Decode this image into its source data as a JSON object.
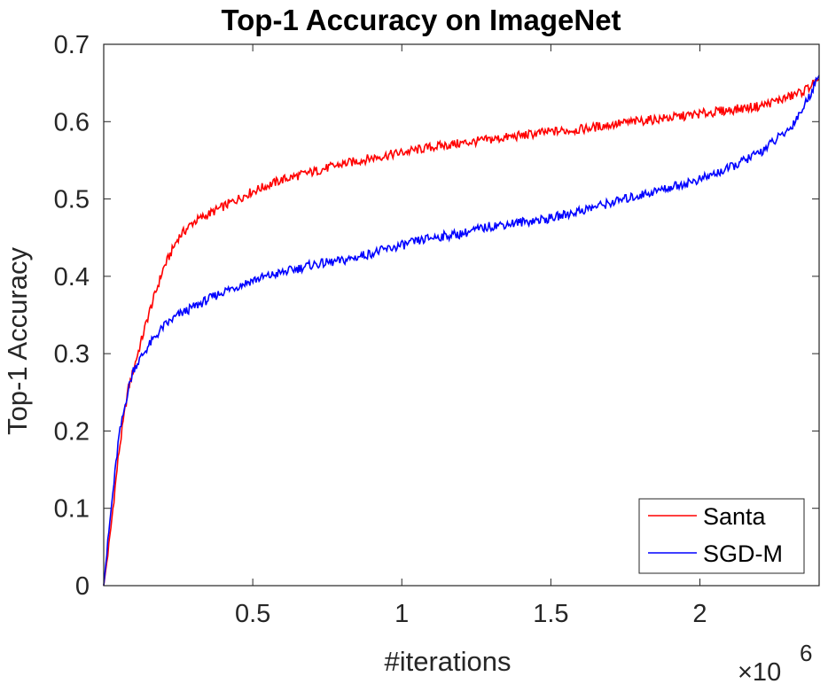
{
  "chart_data": {
    "type": "line",
    "title": "Top-1 Accuracy on ImageNet",
    "xlabel": "#iterations",
    "ylabel": "Top-1 Accuracy",
    "x_multiplier": "×10",
    "x_multiplier_exp": "6",
    "xlim": [
      0,
      2.4
    ],
    "ylim": [
      0,
      0.7
    ],
    "xticks": [
      0.5,
      1,
      1.5,
      2
    ],
    "xtick_labels": [
      "0.5",
      "1",
      "1.5",
      "2"
    ],
    "yticks": [
      0,
      0.1,
      0.2,
      0.3,
      0.4,
      0.5,
      0.6,
      0.7
    ],
    "ytick_labels": [
      "0",
      "0.1",
      "0.2",
      "0.3",
      "0.4",
      "0.5",
      "0.6",
      "0.7"
    ],
    "grid": false,
    "legend_position": "bottom-right",
    "x": [
      0,
      0.02,
      0.05,
      0.08,
      0.1,
      0.15,
      0.2,
      0.25,
      0.3,
      0.4,
      0.5,
      0.6,
      0.7,
      0.8,
      0.9,
      1.0,
      1.1,
      1.2,
      1.3,
      1.4,
      1.5,
      1.6,
      1.7,
      1.8,
      1.9,
      2.0,
      2.1,
      2.2,
      2.3,
      2.35,
      2.4
    ],
    "series": [
      {
        "name": "Santa",
        "color": "#ff0000",
        "values": [
          0,
          0.06,
          0.17,
          0.25,
          0.28,
          0.35,
          0.41,
          0.45,
          0.47,
          0.49,
          0.51,
          0.525,
          0.535,
          0.545,
          0.553,
          0.56,
          0.567,
          0.572,
          0.577,
          0.582,
          0.587,
          0.59,
          0.596,
          0.601,
          0.605,
          0.61,
          0.615,
          0.62,
          0.632,
          0.64,
          0.655
        ]
      },
      {
        "name": "SGD-M",
        "color": "#0000ff",
        "values": [
          0,
          0.08,
          0.19,
          0.25,
          0.28,
          0.31,
          0.335,
          0.35,
          0.36,
          0.38,
          0.395,
          0.405,
          0.415,
          0.42,
          0.43,
          0.44,
          0.45,
          0.455,
          0.465,
          0.47,
          0.475,
          0.485,
          0.495,
          0.505,
          0.515,
          0.525,
          0.54,
          0.56,
          0.59,
          0.62,
          0.66
        ]
      }
    ]
  }
}
